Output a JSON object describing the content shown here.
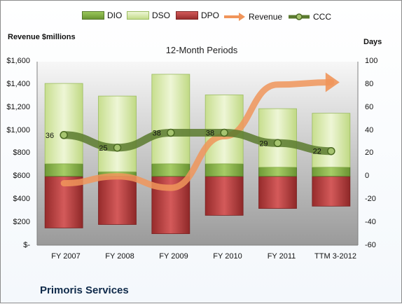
{
  "chart_data": {
    "type": "bar",
    "title": "12-Month Periods",
    "ylabel_left": "Revenue $millions",
    "ylabel_right": "Days",
    "categories": [
      "FY 2007",
      "FY 2008",
      "FY 2009",
      "FY 2010",
      "FY 2011",
      "TTM 3-2012"
    ],
    "y_left_range": [
      0,
      1600
    ],
    "y_left_ticks": [
      "$-",
      "$200",
      "$400",
      "$600",
      "$800",
      "$1,000",
      "$1,200",
      "$1,400",
      "$1,600"
    ],
    "y_right_range": [
      -60,
      100
    ],
    "y_right_ticks": [
      "-60",
      "-40",
      "-20",
      "0",
      "20",
      "40",
      "60",
      "80",
      "100"
    ],
    "series": [
      {
        "name": "DIO",
        "type": "stacked-bar",
        "axis": "right",
        "values": [
          11,
          4,
          11,
          11,
          8,
          8
        ],
        "color": "#7aa83c"
      },
      {
        "name": "DSO",
        "type": "stacked-bar",
        "axis": "right",
        "values": [
          70,
          66,
          78,
          60,
          51,
          47
        ],
        "color": "#cde29a"
      },
      {
        "name": "DPO",
        "type": "negative-bar",
        "axis": "right",
        "values": [
          -45,
          -42,
          -50,
          -34,
          -28,
          -26
        ],
        "color": "#b03a3a"
      },
      {
        "name": "Revenue",
        "type": "line",
        "axis": "left",
        "values": [
          540,
          600,
          500,
          950,
          1400,
          1420
        ],
        "color": "#f0955a"
      },
      {
        "name": "CCC",
        "type": "line",
        "axis": "right",
        "values": [
          36,
          25,
          38,
          38,
          29,
          22
        ],
        "labels": [
          "36",
          "25",
          "38",
          "38",
          "29",
          "22"
        ],
        "color": "#5a7a2e"
      }
    ],
    "legend_position": "top",
    "grid": false
  },
  "legend": {
    "dio": "DIO",
    "dso": "DSO",
    "dpo": "DPO",
    "revenue": "Revenue",
    "ccc": "CCC"
  },
  "company_name": "Primoris Services"
}
